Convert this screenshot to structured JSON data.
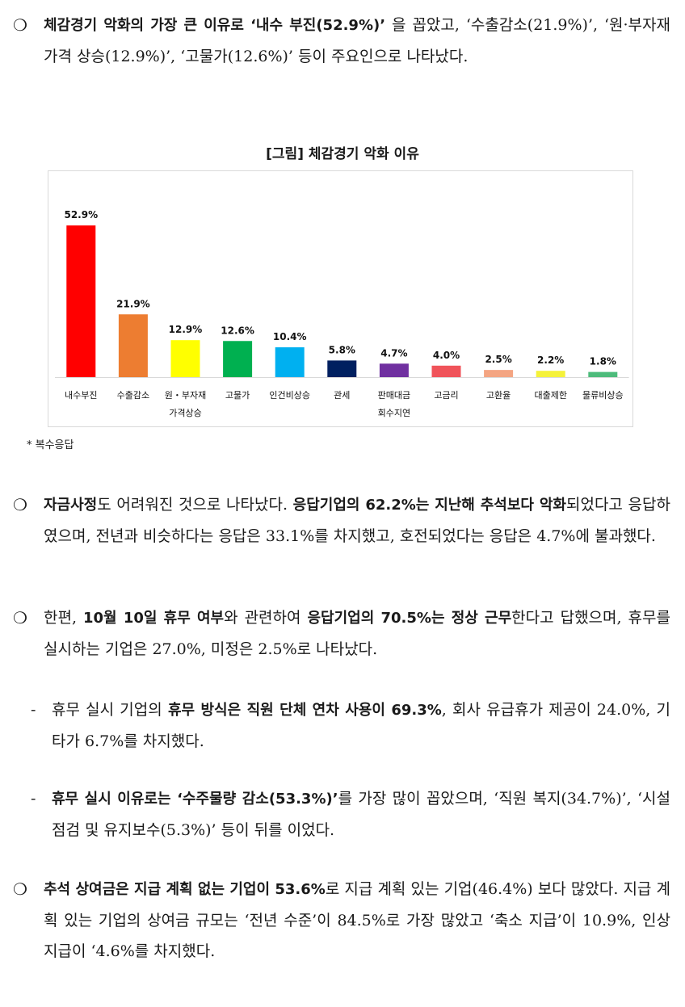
{
  "p1": {
    "a": "체감경기 악화의 가장 큰 이유로 ‘내수 부진(52.9%)’",
    "b": "을 꼽았고, ‘수출감소(21.9%)’, ‘원·부자재 가격 상승(12.9%)’, ‘고물가(12.6%)’ 등이 주요인으로 나타났다."
  },
  "figure": {
    "title": "[그림] 체감경기 악화 이유",
    "note": "* 복수응답"
  },
  "chart_data": {
    "type": "bar",
    "title": "[그림] 체감경기 악화 이유",
    "categories": [
      [
        "내수부진"
      ],
      [
        "수출감소"
      ],
      [
        "원・부자재",
        "가격상승"
      ],
      [
        "고물가"
      ],
      [
        "인건비상승"
      ],
      [
        "관세"
      ],
      [
        "판매대금",
        "회수지연"
      ],
      [
        "고금리"
      ],
      [
        "고환율"
      ],
      [
        "대출제한"
      ],
      [
        "물류비상승"
      ]
    ],
    "values": [
      52.9,
      21.9,
      12.9,
      12.6,
      10.4,
      5.8,
      4.7,
      4.0,
      2.5,
      2.2,
      1.8
    ],
    "value_labels": [
      "52.9%",
      "21.9%",
      "12.9%",
      "12.6%",
      "10.4%",
      "5.8%",
      "4.7%",
      "4.0%",
      "2.5%",
      "2.2%",
      "1.8%"
    ],
    "colors": [
      "#ff0000",
      "#ed7d31",
      "#ffff00",
      "#00b050",
      "#00b0f0",
      "#002060",
      "#7030a0",
      "#f0535a",
      "#f4a582",
      "#f5f23a",
      "#4dbb7b"
    ],
    "ylim": [
      0,
      60
    ],
    "grid": false,
    "legend": "none"
  },
  "p2": {
    "a": "자금사정",
    "b": "도 어려워진 것으로 나타났다. ",
    "c": "응답기업의 62.2%는 지난해 추석보다 악화",
    "d": "되었다고 응답하였으며, 전년과 비슷하다는 응답은 33.1%를 차지했고, 호전되었다는 응답은 4.7%에 불과했다."
  },
  "p3": {
    "a": "한편, ",
    "b": "10월 10일 휴무 여부",
    "c": "와 관련하여 ",
    "d": "응답기업의 70.5%는 정상 근무",
    "e": "한다고 답했으며, 휴무를 실시하는 기업은 27.0%, 미정은 2.5%로 나타났다."
  },
  "s1": {
    "a": "휴무 실시 기업의 ",
    "b": "휴무 방식은 직원 단체 연차 사용이 69.3%",
    "c": ", 회사 유급휴가 제공이 24.0%, 기타가 6.7%를 차지했다."
  },
  "s2": {
    "a": "휴무 실시 이유로는 ‘수주물량 감소(53.3%)’",
    "b": "를 가장 많이 꼽았으며, ‘직원 복지(34.7%)’, ‘시설 점검 및 유지보수(5.3%)’ 등이 뒤를 이었다."
  },
  "p4": {
    "a": "추석 상여금은 지급 계획 없는 기업이 53.6%",
    "b": "로 지급 계획 있는 기업(46.4%) 보다 많았다. 지급 계획 있는 기업의 상여금 규모는 ‘전년 수준’이 84.5%로 가장 많았고 ‘축소 지급’이 10.9%, 인상 지급이 ‘4.6%를 차지했다."
  },
  "symbols": {
    "bullet": "❍",
    "dash": "-"
  }
}
